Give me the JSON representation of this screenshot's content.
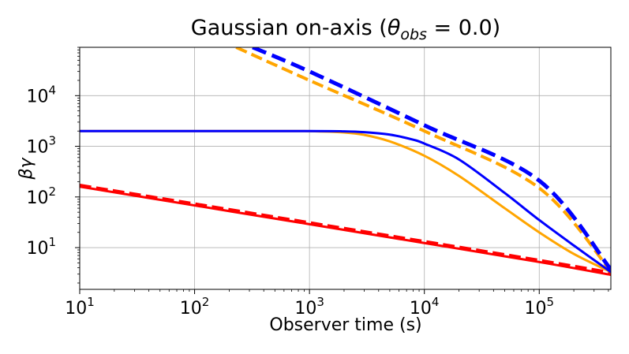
{
  "chart_data": {
    "type": "line",
    "title": "Gaussian on-axis (θobs = 0.0)",
    "title_parts": {
      "prefix": "Gaussian on-axis (",
      "theta": "θ",
      "theta_sub": "obs",
      "suffix": " = 0.0)"
    },
    "xlabel": "Observer time (s)",
    "ylabel": "βγ",
    "xscale": "log",
    "yscale": "log",
    "xlim": [
      10,
      420000
    ],
    "ylim": [
      1.5,
      90000
    ],
    "grid": true,
    "x_ticks": [
      {
        "value": 10,
        "base": "10",
        "exp": "1"
      },
      {
        "value": 100,
        "base": "10",
        "exp": "2"
      },
      {
        "value": 1000,
        "base": "10",
        "exp": "3"
      },
      {
        "value": 10000,
        "base": "10",
        "exp": "4"
      },
      {
        "value": 100000,
        "base": "10",
        "exp": "5"
      }
    ],
    "y_ticks": [
      {
        "value": 10,
        "base": "10",
        "exp": "1"
      },
      {
        "value": 100,
        "base": "10",
        "exp": "2"
      },
      {
        "value": 1000,
        "base": "10",
        "exp": "3"
      },
      {
        "value": 10000,
        "base": "10",
        "exp": "4"
      }
    ],
    "series": [
      {
        "color": "#ff0000",
        "style": "dashed",
        "width": 4,
        "x": [
          10,
          100,
          1000,
          10000,
          100000,
          420000
        ],
        "y": [
          170,
          73,
          31,
          13.2,
          5.6,
          3.2
        ]
      },
      {
        "color": "#ff0000",
        "style": "solid",
        "width": 3,
        "x": [
          10,
          100,
          1000,
          10000,
          100000,
          420000
        ],
        "y": [
          160,
          68,
          29,
          12.3,
          5.2,
          2.9
        ]
      },
      {
        "color": "#ffa500",
        "style": "dashed",
        "width": 4,
        "x": [
          230,
          1000,
          10000,
          100000,
          420000
        ],
        "y": [
          90000,
          20000,
          2000,
          150,
          3.4
        ]
      },
      {
        "color": "#ffa500",
        "style": "solid",
        "width": 3,
        "x": [
          10,
          500,
          1000,
          2000,
          3000,
          5000,
          10000,
          20000,
          50000,
          100000,
          200000,
          420000
        ],
        "y": [
          2000,
          2000,
          1990,
          1880,
          1680,
          1250,
          650,
          260,
          60,
          20,
          7.5,
          3.3
        ]
      },
      {
        "color": "#0000ff",
        "style": "dashed",
        "width": 5,
        "x": [
          320,
          1000,
          10000,
          100000,
          420000
        ],
        "y": [
          90000,
          30000,
          2600,
          210,
          3.7
        ]
      },
      {
        "color": "#0000ff",
        "style": "solid",
        "width": 3,
        "x": [
          10,
          1000,
          2000,
          3000,
          5000,
          8000,
          10000,
          20000,
          50000,
          100000,
          200000,
          420000
        ],
        "y": [
          2000,
          2000,
          1970,
          1900,
          1700,
          1350,
          1130,
          550,
          120,
          35,
          11,
          3.3
        ]
      }
    ]
  }
}
